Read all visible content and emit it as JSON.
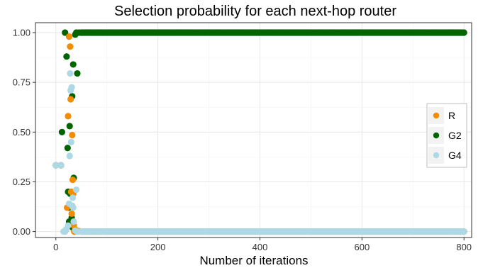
{
  "chart_data": {
    "type": "scatter",
    "title": "Selection probability for each next-hop router",
    "xlabel": "Number of iterations",
    "ylabel": "",
    "xlim": [
      -40,
      815
    ],
    "ylim": [
      -0.03,
      1.05
    ],
    "xticks": [
      0,
      200,
      400,
      600,
      800
    ],
    "yticks": [
      0.0,
      0.25,
      0.5,
      0.75,
      1.0
    ],
    "xtick_labels": [
      "0",
      "200",
      "400",
      "600",
      "800"
    ],
    "ytick_labels": [
      "0.00",
      "0.25",
      "0.50",
      "0.75",
      "1.00"
    ],
    "grid": true,
    "legend_position": "right",
    "series": [
      {
        "name": "R",
        "color": "#f28c00",
        "points": [
          [
            0,
            0.333
          ],
          [
            10,
            0.333
          ],
          [
            18,
            0.0
          ],
          [
            20,
            0.01
          ],
          [
            22,
            0.12
          ],
          [
            24,
            0.58
          ],
          [
            26,
            0.98
          ],
          [
            28,
            0.93
          ],
          [
            29,
            0.665
          ],
          [
            30,
            0.2
          ],
          [
            31,
            0.09
          ],
          [
            32,
            0.485
          ],
          [
            33,
            0.26
          ],
          [
            34,
            0.19
          ],
          [
            35,
            0.03
          ],
          [
            36,
            0.0
          ],
          [
            38,
            0.01
          ],
          [
            40,
            0.005
          ],
          [
            45,
            0.002
          ],
          [
            50,
            0.0
          ],
          [
            60,
            0.0
          ],
          [
            80,
            0.0
          ]
        ],
        "tail": {
          "x_start": 50,
          "x_end": 800,
          "step": 2,
          "value": 0.0
        }
      },
      {
        "name": "G2",
        "color": "#006400",
        "points": [
          [
            0,
            0.333
          ],
          [
            10,
            0.333
          ],
          [
            12,
            0.5
          ],
          [
            18,
            1.0
          ],
          [
            21,
            0.88
          ],
          [
            23,
            0.42
          ],
          [
            24,
            0.2
          ],
          [
            25,
            0.12
          ],
          [
            26,
            0.05
          ],
          [
            27,
            0.53
          ],
          [
            28,
            0.19
          ],
          [
            30,
            0.04
          ],
          [
            31,
            0.07
          ],
          [
            32,
            0.68
          ],
          [
            33,
            0.02
          ],
          [
            34,
            0.84
          ],
          [
            35,
            0.27
          ],
          [
            38,
            0.99
          ],
          [
            40,
            1.0
          ],
          [
            42,
            0.795
          ],
          [
            45,
            1.0
          ],
          [
            50,
            1.0
          ]
        ],
        "tail": {
          "x_start": 50,
          "x_end": 800,
          "step": 2,
          "value": 1.0
        }
      },
      {
        "name": "G4",
        "color": "#add8e6",
        "points": [
          [
            0,
            0.333
          ],
          [
            10,
            0.333
          ],
          [
            15,
            0.0
          ],
          [
            18,
            0.0
          ],
          [
            20,
            0.01
          ],
          [
            24,
            0.03
          ],
          [
            26,
            0.14
          ],
          [
            27,
            0.38
          ],
          [
            28,
            0.795
          ],
          [
            29,
            0.71
          ],
          [
            30,
            0.45
          ],
          [
            31,
            0.725
          ],
          [
            32,
            0.13
          ],
          [
            33,
            0.17
          ],
          [
            34,
            0.12
          ],
          [
            35,
            0.05
          ],
          [
            38,
            0.005
          ],
          [
            40,
            0.21
          ],
          [
            42,
            0.0
          ],
          [
            50,
            0.0
          ],
          [
            60,
            0.0
          ],
          [
            80,
            0.0
          ]
        ],
        "tail": {
          "x_start": 50,
          "x_end": 800,
          "step": 2,
          "value": 0.0
        }
      }
    ]
  }
}
